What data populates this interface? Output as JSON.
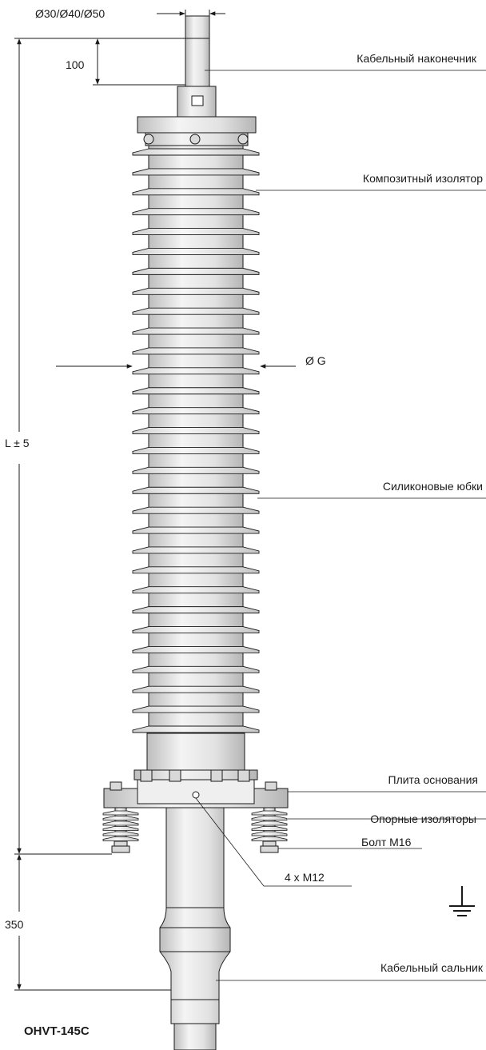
{
  "dimensions": {
    "diameters": "Ø30/Ø40/Ø50",
    "terminal_length": "100",
    "overall_length": "L ± 5",
    "shed_diameter": "Ø G",
    "base_height": "350"
  },
  "labels": {
    "cable_lug": "Кабельный наконечник",
    "composite_insulator": "Композитный изолятор",
    "silicone_sheds": "Силиконовые юбки",
    "base_plate": "Плита основания",
    "support_insulators": "Опорные изоляторы",
    "bolt": "Болт М16",
    "screws": "4 x M12",
    "cable_gland": "Кабельный сальник"
  },
  "model": "OHVT-145C",
  "ground_symbol": "ground-icon",
  "colors": {
    "line": "#1a1a1a",
    "body": "#ececec",
    "shade": "#c8c8c8"
  }
}
